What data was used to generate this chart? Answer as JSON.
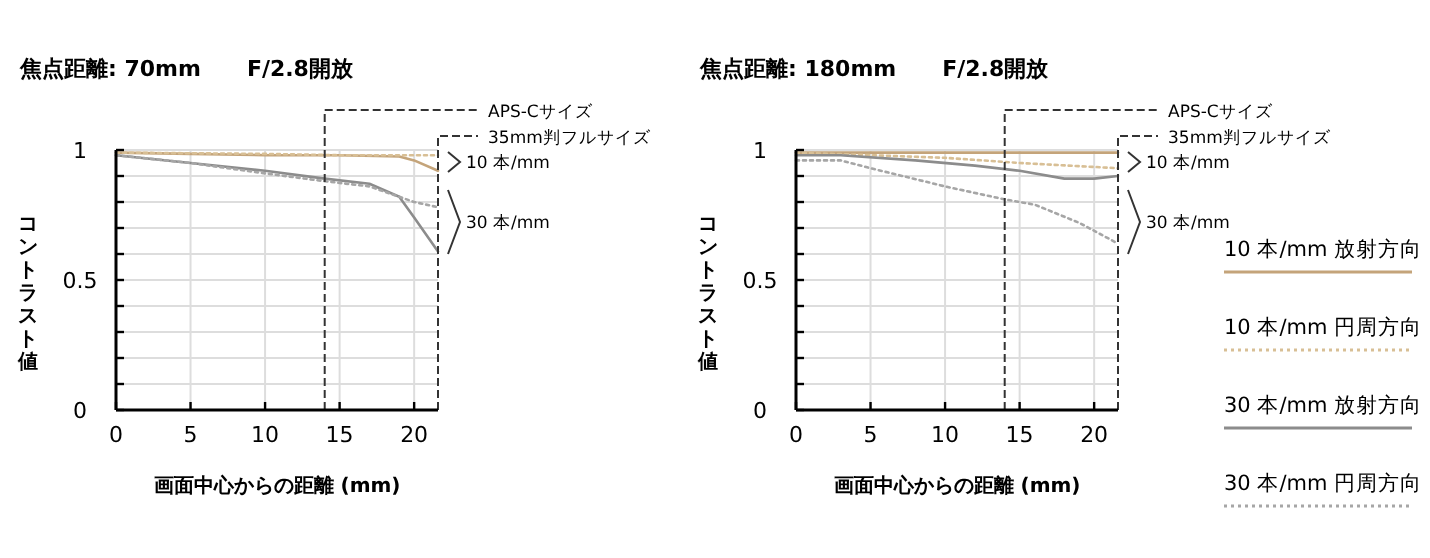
{
  "chart_data": [
    {
      "type": "line",
      "title": "焦点距離: 70mm      F/2.8開放",
      "xlabel": "画面中心からの距離 (mm)",
      "ylabel": "コントラスト値",
      "xlim": [
        0,
        21.6
      ],
      "ylim": [
        0,
        1
      ],
      "xticks": [
        0,
        5,
        10,
        15,
        20
      ],
      "yticks": [
        0,
        {
          "value": 0.1,
          "label": null
        },
        {
          "value": 0.2,
          "label": null
        },
        {
          "value": 0.3,
          "label": null
        },
        {
          "value": 0.4,
          "label": null
        },
        0.5,
        {
          "value": 0.6,
          "label": null
        },
        {
          "value": 0.7,
          "label": null
        },
        {
          "value": 0.8,
          "label": null
        },
        {
          "value": 0.9,
          "label": null
        },
        1
      ],
      "grid": true,
      "legend": false,
      "ref_lines": [
        {
          "axis": "x",
          "value": 14,
          "label": "APS-Cサイズ",
          "line_style": "dashed",
          "color": "#333333"
        },
        {
          "axis": "x",
          "value": 21.6,
          "label": "35mm判フルサイズ",
          "line_style": "dashed",
          "color": "#333333"
        }
      ],
      "annotations": [
        "10 本/mm",
        "30 本/mm"
      ],
      "series": [
        {
          "color": "#c4a47a",
          "line_style": "solid",
          "x": [
            0,
            5,
            10,
            15,
            19,
            20,
            21.6
          ],
          "values": [
            0.99,
            0.985,
            0.98,
            0.98,
            0.975,
            0.96,
            0.92
          ]
        },
        {
          "color": "#d8bf95",
          "line_style": "dotted",
          "x": [
            0,
            10,
            15,
            20,
            21.6
          ],
          "values": [
            0.99,
            0.985,
            0.98,
            0.98,
            0.98
          ]
        },
        {
          "color": "#8c8c8c",
          "line_style": "solid",
          "x": [
            0,
            5,
            10,
            14,
            17,
            19,
            20,
            21.6
          ],
          "values": [
            0.98,
            0.95,
            0.92,
            0.89,
            0.87,
            0.82,
            0.74,
            0.61
          ]
        },
        {
          "color": "#a6a6a6",
          "line_style": "dotted",
          "x": [
            0,
            5,
            10,
            14,
            17,
            19,
            20,
            21.6
          ],
          "values": [
            0.98,
            0.95,
            0.91,
            0.88,
            0.86,
            0.82,
            0.8,
            0.78
          ]
        }
      ]
    },
    {
      "type": "line",
      "title": "焦点距離: 180mm      F/2.8開放",
      "xlabel": "画面中心からの距離 (mm)",
      "ylabel": "コントラスト値",
      "xlim": [
        0,
        21.6
      ],
      "ylim": [
        0,
        1
      ],
      "xticks": [
        0,
        5,
        10,
        15,
        20
      ],
      "yticks": [
        0,
        {
          "value": 0.1,
          "label": null
        },
        {
          "value": 0.2,
          "label": null
        },
        {
          "value": 0.3,
          "label": null
        },
        {
          "value": 0.4,
          "label": null
        },
        0.5,
        {
          "value": 0.6,
          "label": null
        },
        {
          "value": 0.7,
          "label": null
        },
        {
          "value": 0.8,
          "label": null
        },
        {
          "value": 0.9,
          "label": null
        },
        1
      ],
      "grid": true,
      "legend": "right",
      "ref_lines": [
        {
          "axis": "x",
          "value": 14,
          "label": "APS-Cサイズ",
          "line_style": "dashed",
          "color": "#333333"
        },
        {
          "axis": "x",
          "value": 21.6,
          "label": "35mm判フルサイズ",
          "line_style": "dashed",
          "color": "#333333"
        }
      ],
      "annotations": [
        "10 本/mm",
        "30 本/mm"
      ],
      "series": [
        {
          "name": "10 本/mm 放射方向",
          "color": "#c4a47a",
          "line_style": "solid",
          "x": [
            0,
            5,
            10,
            15,
            20,
            21.6
          ],
          "values": [
            0.99,
            0.99,
            0.99,
            0.99,
            0.99,
            0.99
          ]
        },
        {
          "name": "10 本/mm 円周方向",
          "color": "#d8bf95",
          "line_style": "dotted",
          "x": [
            0,
            5,
            10,
            15,
            21.6
          ],
          "values": [
            0.99,
            0.98,
            0.97,
            0.95,
            0.93
          ]
        },
        {
          "name": "30 本/mm 放射方向",
          "color": "#8c8c8c",
          "line_style": "solid",
          "x": [
            0,
            3,
            8,
            12,
            15,
            18,
            20,
            21.6
          ],
          "values": [
            0.98,
            0.98,
            0.96,
            0.94,
            0.92,
            0.89,
            0.89,
            0.9
          ]
        },
        {
          "name": "30 本/mm 円周方向",
          "color": "#a6a6a6",
          "line_style": "dotted",
          "x": [
            0,
            3,
            5,
            10,
            14,
            16,
            19,
            21.6
          ],
          "values": [
            0.96,
            0.96,
            0.93,
            0.86,
            0.81,
            0.79,
            0.72,
            0.64
          ]
        }
      ]
    }
  ]
}
